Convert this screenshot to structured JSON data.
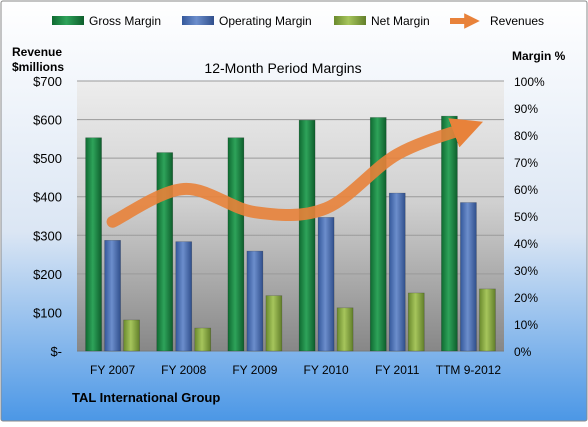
{
  "chart_data": {
    "type": "bar",
    "title": "12-Month Period Margins",
    "left_axis_title": [
      "Revenue",
      "$millions"
    ],
    "right_axis_title": "Margin %",
    "footer": "TAL International Group",
    "categories": [
      "FY 2007",
      "FY 2008",
      "FY 2009",
      "FY 2010",
      "FY 2011",
      "TTM 9-2012"
    ],
    "left_ticks": [
      "$-",
      "$100",
      "$200",
      "$300",
      "$400",
      "$500",
      "$600",
      "$700"
    ],
    "right_ticks": [
      "0%",
      "10%",
      "20%",
      "30%",
      "40%",
      "50%",
      "60%",
      "70%",
      "80%",
      "90%",
      "100%"
    ],
    "left_ylim": [
      0,
      700
    ],
    "right_ylim": [
      0,
      100
    ],
    "grid": true,
    "legend_position": "top",
    "series": [
      {
        "name": "Gross Margin",
        "axis": "right",
        "kind": "bar",
        "color": "#1e8a45",
        "values": [
          79,
          73.5,
          79,
          85.5,
          86.5,
          87
        ]
      },
      {
        "name": "Operating Margin",
        "axis": "right",
        "kind": "bar",
        "color": "#4a6fb5",
        "values": [
          41,
          40.5,
          37,
          49.5,
          58.5,
          55
        ]
      },
      {
        "name": "Net Margin",
        "axis": "right",
        "kind": "bar",
        "color": "#8eb04a",
        "values": [
          11.5,
          8.5,
          20.5,
          16,
          21.5,
          23
        ]
      },
      {
        "name": "Revenues",
        "axis": "left",
        "kind": "line",
        "color": "#e8823a",
        "values": [
          335,
          420,
          360,
          370,
          510,
          580
        ]
      }
    ]
  }
}
